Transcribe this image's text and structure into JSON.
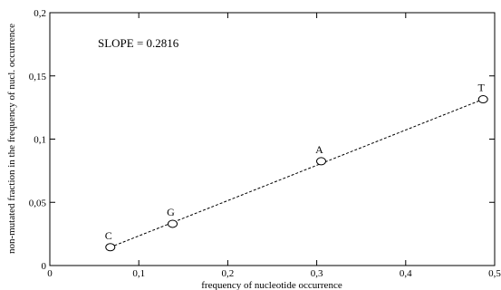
{
  "chart_data": {
    "type": "scatter",
    "xlabel": "frequency of  nucleotide occurrence",
    "ylabel": "non-mutated fraction in the frequency of nucl. occurrence",
    "annotation": "SLOPE = 0.2816",
    "xlim": [
      0,
      0.5
    ],
    "ylim": [
      0,
      0.2
    ],
    "xticks": [
      0,
      0.1,
      0.2,
      0.3,
      0.4,
      0.5
    ],
    "xtick_labels": [
      "0",
      "0,1",
      "0,2",
      "0,3",
      "0,4",
      "0,5"
    ],
    "yticks": [
      0,
      0.05,
      0.1,
      0.15,
      0.2
    ],
    "ytick_labels": [
      "0",
      "0,05",
      "0,1",
      "0,15",
      "0,2"
    ],
    "grid": false,
    "points": [
      {
        "label": "C",
        "x": 0.068,
        "y": 0.0145
      },
      {
        "label": "G",
        "x": 0.138,
        "y": 0.033
      },
      {
        "label": "A",
        "x": 0.305,
        "y": 0.0825
      },
      {
        "label": "T",
        "x": 0.487,
        "y": 0.1315
      }
    ],
    "fit_line": {
      "style": "dashed",
      "from": {
        "x": 0.068,
        "y": 0.0145
      },
      "to": {
        "x": 0.487,
        "y": 0.1315
      }
    }
  }
}
